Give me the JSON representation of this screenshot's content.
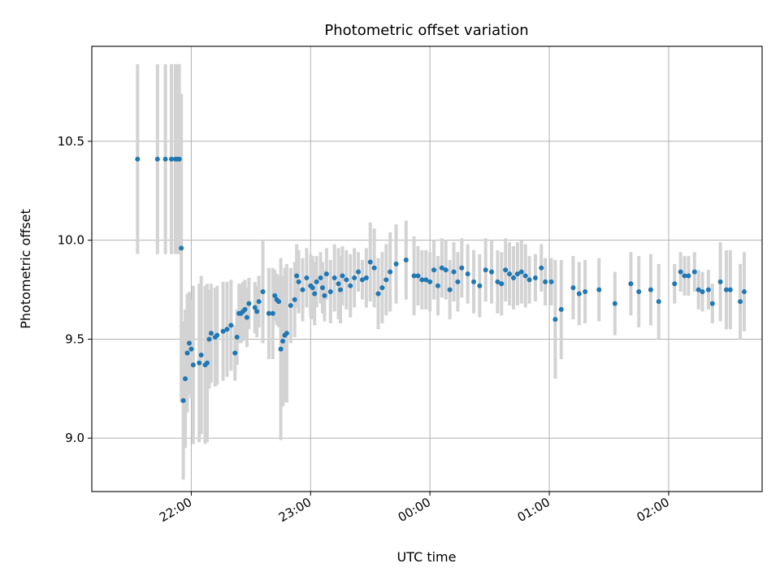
{
  "chart_data": {
    "type": "scatter",
    "title": "Photometric offset variation",
    "xlabel": "UTC time",
    "ylabel": "Photometric offset",
    "x_unit": "UTC time (HH:MM)",
    "xlim": [
      "21:10",
      "02:47"
    ],
    "ylim": [
      8.73,
      10.98
    ],
    "x_ticks": [
      "22:00",
      "23:00",
      "00:00",
      "01:00",
      "02:00"
    ],
    "y_ticks": [
      9.0,
      9.5,
      10.0,
      10.5
    ],
    "y_tick_labels": [
      "9.0",
      "9.5",
      "10.0",
      "10.5"
    ],
    "grid": true,
    "colors": {
      "points": "#1f77b4",
      "errorbars": "#d3d3d3",
      "grid": "#b0b0b0"
    },
    "series": [
      {
        "x": [
          "21:33",
          "21:43",
          "21:47",
          "21:50",
          "21:52",
          "21:53",
          "21:54",
          "21:55",
          "21:56",
          "21:57",
          "21:58",
          "21:59",
          "22:00",
          "22:01",
          "22:04",
          "22:05",
          "22:07",
          "22:08",
          "22:09",
          "22:10",
          "22:12",
          "22:13",
          "22:16",
          "22:18",
          "22:20",
          "22:22",
          "22:23",
          "22:24",
          "22:25",
          "22:26",
          "22:27",
          "22:28",
          "22:29",
          "22:32",
          "22:33",
          "22:34",
          "22:36",
          "22:39",
          "22:41",
          "22:42",
          "22:43",
          "22:44",
          "22:45",
          "22:46",
          "22:47",
          "22:48",
          "22:50",
          "22:52",
          "22:53",
          "22:54",
          "22:56",
          "22:58",
          "23:00",
          "23:01",
          "23:02",
          "23:03",
          "23:05",
          "23:06",
          "23:07",
          "23:08",
          "23:10",
          "23:12",
          "23:14",
          "23:15",
          "23:16",
          "23:18",
          "23:20",
          "23:22",
          "23:24",
          "23:26",
          "23:28",
          "23:30",
          "23:32",
          "23:34",
          "23:36",
          "23:38",
          "23:40",
          "23:43",
          "23:48",
          "23:52",
          "23:54",
          "23:56",
          "23:58",
          "00:00",
          "00:02",
          "00:04",
          "00:06",
          "00:08",
          "00:10",
          "00:12",
          "00:14",
          "00:16",
          "00:19",
          "00:22",
          "00:25",
          "00:28",
          "00:31",
          "00:34",
          "00:36",
          "00:38",
          "00:40",
          "00:42",
          "00:44",
          "00:46",
          "00:48",
          "00:50",
          "00:53",
          "00:56",
          "00:58",
          "01:01",
          "01:03",
          "01:06",
          "01:12",
          "01:15",
          "01:18",
          "01:25",
          "01:33",
          "01:41",
          "01:45",
          "01:51",
          "01:55",
          "02:03",
          "02:06",
          "02:08",
          "02:10",
          "02:13",
          "02:15",
          "02:17",
          "02:20",
          "02:22",
          "02:26",
          "02:29",
          "02:31",
          "02:36",
          "02:38"
        ],
        "y": [
          10.41,
          10.41,
          10.41,
          10.41,
          10.41,
          10.41,
          10.41,
          9.96,
          9.19,
          9.3,
          9.43,
          9.48,
          9.45,
          9.37,
          9.38,
          9.42,
          9.37,
          9.38,
          9.5,
          9.53,
          9.51,
          9.52,
          9.54,
          9.55,
          9.57,
          9.43,
          9.51,
          9.63,
          9.63,
          9.64,
          9.65,
          9.61,
          9.68,
          9.66,
          9.64,
          9.69,
          9.74,
          9.63,
          9.63,
          9.72,
          9.7,
          9.69,
          9.45,
          9.49,
          9.52,
          9.53,
          9.67,
          9.7,
          9.82,
          9.79,
          9.75,
          9.81,
          9.77,
          9.76,
          9.73,
          9.79,
          9.81,
          9.76,
          9.72,
          9.83,
          9.74,
          9.81,
          9.78,
          9.75,
          9.82,
          9.8,
          9.77,
          9.81,
          9.84,
          9.8,
          9.81,
          9.89,
          9.86,
          9.73,
          9.76,
          9.8,
          9.84,
          9.88,
          9.9,
          9.82,
          9.82,
          9.8,
          9.8,
          9.79,
          9.85,
          9.77,
          9.86,
          9.85,
          9.75,
          9.84,
          9.79,
          9.86,
          9.83,
          9.79,
          9.77,
          9.85,
          9.84,
          9.79,
          9.78,
          9.85,
          9.83,
          9.81,
          9.83,
          9.84,
          9.82,
          9.8,
          9.81,
          9.86,
          9.79,
          9.79,
          9.6,
          9.65,
          9.76,
          9.73,
          9.74,
          9.75,
          9.68,
          9.78,
          9.74,
          9.75,
          9.69,
          9.78,
          9.84,
          9.82,
          9.82,
          9.84,
          9.75,
          9.74,
          9.75,
          9.68,
          9.79,
          9.75,
          9.75,
          9.69,
          9.74
        ],
        "yerr": [
          0.48,
          0.48,
          0.48,
          0.48,
          0.48,
          0.48,
          0.48,
          0.78,
          0.4,
          0.35,
          0.3,
          0.26,
          0.25,
          0.4,
          0.4,
          0.4,
          0.4,
          0.4,
          0.25,
          0.25,
          0.25,
          0.25,
          0.25,
          0.24,
          0.23,
          0.14,
          0.14,
          0.15,
          0.15,
          0.15,
          0.15,
          0.15,
          0.13,
          0.13,
          0.13,
          0.13,
          0.26,
          0.23,
          0.23,
          0.13,
          0.13,
          0.13,
          0.46,
          0.33,
          0.34,
          0.35,
          0.19,
          0.19,
          0.16,
          0.16,
          0.16,
          0.15,
          0.16,
          0.16,
          0.16,
          0.13,
          0.13,
          0.13,
          0.13,
          0.13,
          0.16,
          0.17,
          0.18,
          0.17,
          0.15,
          0.15,
          0.16,
          0.15,
          0.1,
          0.1,
          0.15,
          0.2,
          0.2,
          0.18,
          0.18,
          0.18,
          0.2,
          0.2,
          0.2,
          0.2,
          0.15,
          0.15,
          0.15,
          0.15,
          0.15,
          0.15,
          0.15,
          0.15,
          0.15,
          0.15,
          0.15,
          0.15,
          0.15,
          0.16,
          0.16,
          0.16,
          0.16,
          0.16,
          0.16,
          0.16,
          0.16,
          0.16,
          0.16,
          0.16,
          0.16,
          0.12,
          0.12,
          0.12,
          0.12,
          0.12,
          0.3,
          0.25,
          0.16,
          0.16,
          0.16,
          0.16,
          0.16,
          0.16,
          0.18,
          0.18,
          0.19,
          0.1,
          0.1,
          0.1,
          0.1,
          0.1,
          0.1,
          0.1,
          0.1,
          0.1,
          0.2,
          0.2,
          0.2,
          0.19,
          0.2
        ]
      }
    ]
  }
}
